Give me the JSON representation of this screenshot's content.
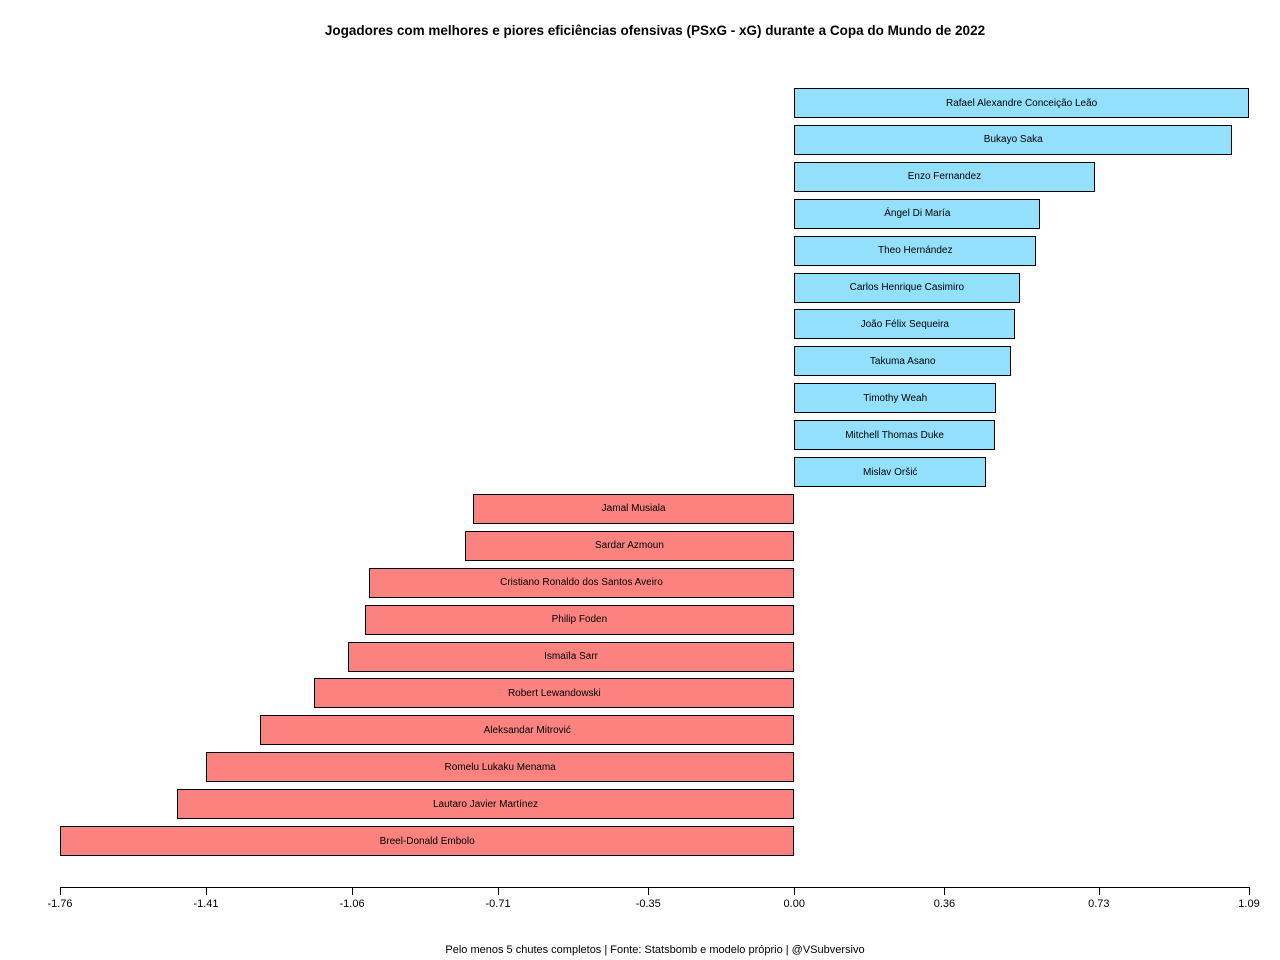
{
  "page": {
    "title": "Jogadores com melhores e piores eficiências ofensivas (PSxG - xG) durante a Copa do Mundo de 2022",
    "footer": "Pelo menos 5 chutes completos | Fonte: Statsbomb e modelo próprio | @VSubversivo"
  },
  "chart_data": {
    "type": "bar",
    "orientation": "horizontal",
    "title": "Jogadores com melhores e piores eficiências ofensivas (PSxG - xG) durante a Copa do Mundo de 2022",
    "xlabel": "",
    "ylabel": "",
    "xlim": [
      -1.76,
      1.09
    ],
    "grid": false,
    "legend": "none",
    "x_ticks": [
      {
        "label": "-1.76",
        "value": -1.76
      },
      {
        "label": "-1.41",
        "value": -1.41
      },
      {
        "label": "-1.06",
        "value": -1.06
      },
      {
        "label": "-0.71",
        "value": -0.71
      },
      {
        "label": "-0.35",
        "value": -0.35
      },
      {
        "label": "0.00",
        "value": 0.0
      },
      {
        "label": "0.36",
        "value": 0.36
      },
      {
        "label": "0.73",
        "value": 0.73
      },
      {
        "label": "1.09",
        "value": 1.09
      }
    ],
    "colors": {
      "positive_bar": "#92E0FC",
      "negative_bar": "#FC8280",
      "bar_border": "#000000",
      "text": "#000000"
    },
    "players": [
      {
        "name": "Rafael Alexandre Conceição Leão",
        "value": 1.09
      },
      {
        "name": "Bukayo Saka",
        "value": 1.05
      },
      {
        "name": "Enzo Fernandez",
        "value": 0.72
      },
      {
        "name": "Ángel Di María",
        "value": 0.59
      },
      {
        "name": "Theo Hernández",
        "value": 0.58
      },
      {
        "name": "Carlos Henrique Casimiro",
        "value": 0.54
      },
      {
        "name": "João Félix Sequeira",
        "value": 0.53
      },
      {
        "name": "Takuma Asano",
        "value": 0.52
      },
      {
        "name": "Timothy Weah",
        "value": 0.484
      },
      {
        "name": "Mitchell Thomas Duke",
        "value": 0.481
      },
      {
        "name": "Mislav Oršić",
        "value": 0.46
      },
      {
        "name": "Jamal Musiala",
        "value": -0.77
      },
      {
        "name": "Sardar Azmoun",
        "value": -0.79
      },
      {
        "name": "Cristiano Ronaldo dos Santos Aveiro",
        "value": -1.02
      },
      {
        "name": "Philip Foden",
        "value": -1.03
      },
      {
        "name": "Ismaïla Sarr",
        "value": -1.07
      },
      {
        "name": "Robert Lewandowski",
        "value": -1.15
      },
      {
        "name": "Aleksandar Mitrović",
        "value": -1.28
      },
      {
        "name": "Romelu Lukaku Menama",
        "value": -1.41
      },
      {
        "name": "Lautaro Javier Martínez",
        "value": -1.48
      },
      {
        "name": "Breel-Donald Embolo",
        "value": -1.76
      }
    ],
    "footnote": "Pelo menos 5 chutes completos | Fonte: Statsbomb e modelo próprio | @VSubversivo"
  }
}
